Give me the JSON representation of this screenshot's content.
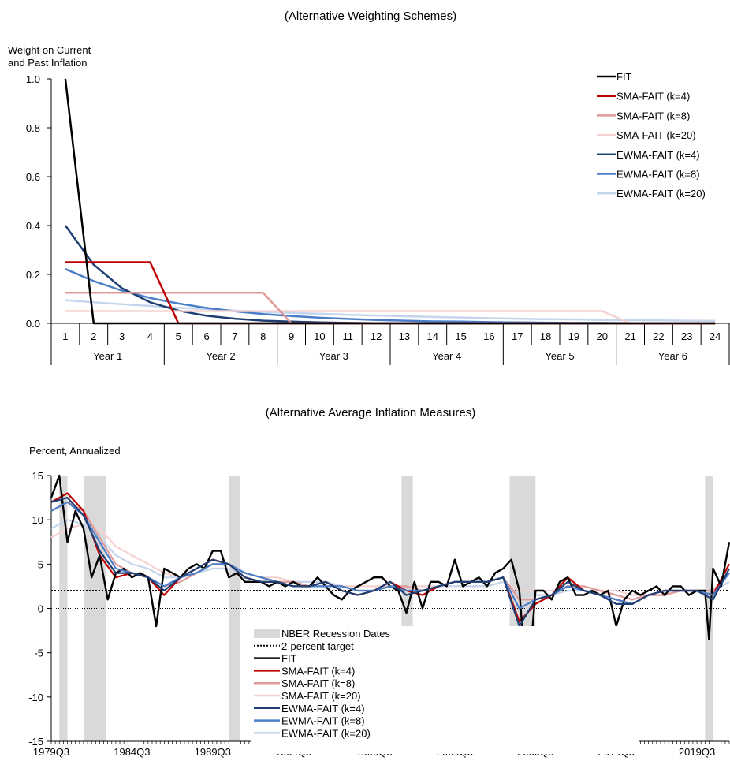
{
  "chart_data": [
    {
      "type": "line",
      "title": "(Alternative Weighting Schemes)",
      "ylabel_lines": [
        "Weight on Current",
        "and Past Inflation"
      ],
      "ylim": [
        0,
        1.0
      ],
      "yticks": [
        "1.0",
        "0.8",
        "0.6",
        "0.4",
        "0.2",
        "0.0"
      ],
      "ytick_values": [
        1.0,
        0.8,
        0.6,
        0.4,
        0.2,
        0.0
      ],
      "x": [
        1,
        2,
        3,
        4,
        5,
        6,
        7,
        8,
        9,
        10,
        11,
        12,
        13,
        14,
        15,
        16,
        17,
        18,
        19,
        20,
        21,
        22,
        23,
        24
      ],
      "year_labels": [
        "Year 1",
        "Year 2",
        "Year 3",
        "Year 4",
        "Year 5",
        "Year 6"
      ],
      "legend_position": "top-right",
      "series": [
        {
          "name": "FIT",
          "color": "#000000",
          "values": [
            1,
            0,
            0,
            0,
            0,
            0,
            0,
            0,
            0,
            0,
            0,
            0,
            0,
            0,
            0,
            0,
            0,
            0,
            0,
            0,
            0,
            0,
            0,
            0
          ]
        },
        {
          "name": "SMA-FAIT (k=4)",
          "color": "#c00000",
          "values": [
            0.25,
            0.25,
            0.25,
            0.25,
            0,
            0,
            0,
            0,
            0,
            0,
            0,
            0,
            0,
            0,
            0,
            0,
            0,
            0,
            0,
            0,
            0,
            0,
            0,
            0
          ]
        },
        {
          "name": "SMA-FAIT (k=8)",
          "color": "#e09a9a",
          "values": [
            0.125,
            0.125,
            0.125,
            0.125,
            0.125,
            0.125,
            0.125,
            0.125,
            0,
            0,
            0,
            0,
            0,
            0,
            0,
            0,
            0,
            0,
            0,
            0,
            0,
            0,
            0,
            0
          ]
        },
        {
          "name": "SMA-FAIT (k=20)",
          "color": "#f5d2d2",
          "values": [
            0.05,
            0.05,
            0.05,
            0.05,
            0.05,
            0.05,
            0.05,
            0.05,
            0.05,
            0.05,
            0.05,
            0.05,
            0.05,
            0.05,
            0.05,
            0.05,
            0.05,
            0.05,
            0.05,
            0.05,
            0,
            0,
            0,
            0
          ]
        },
        {
          "name": "EWMA-FAIT (k=4)",
          "color": "#1f3f73",
          "values": [
            0.4,
            0.24,
            0.144,
            0.086,
            0.052,
            0.031,
            0.019,
            0.011,
            0.007,
            0.004,
            0.002,
            0.001,
            0.001,
            0,
            0,
            0,
            0,
            0,
            0,
            0,
            0,
            0,
            0,
            0
          ]
        },
        {
          "name": "EWMA-FAIT (k=8)",
          "color": "#4a7fc8",
          "values": [
            0.222,
            0.173,
            0.134,
            0.104,
            0.081,
            0.063,
            0.049,
            0.038,
            0.03,
            0.023,
            0.018,
            0.014,
            0.011,
            0.008,
            0.007,
            0.005,
            0.004,
            0.003,
            0.002,
            0.002,
            0.001,
            0.001,
            0.001,
            0.001
          ]
        },
        {
          "name": "EWMA-FAIT (k=20)",
          "color": "#c5d5ec",
          "values": [
            0.095,
            0.086,
            0.078,
            0.071,
            0.064,
            0.058,
            0.052,
            0.047,
            0.043,
            0.039,
            0.035,
            0.032,
            0.029,
            0.026,
            0.024,
            0.021,
            0.019,
            0.017,
            0.016,
            0.014,
            0.013,
            0.012,
            0.011,
            0.01
          ]
        }
      ]
    },
    {
      "type": "line",
      "title": "(Alternative Average Inflation Measures)",
      "ylabel": "Percent, Annualized",
      "ylim": [
        -15,
        15
      ],
      "yticks": [
        "15",
        "10",
        "5",
        "0",
        "-5",
        "-10",
        "-15"
      ],
      "ytick_values": [
        15,
        10,
        5,
        0,
        -5,
        -10,
        -15
      ],
      "xlabels": [
        "1979Q3",
        "1984Q3",
        "1989Q3",
        "1994Q3",
        "1999Q3",
        "2004Q3",
        "2009Q3",
        "2014Q3",
        "2019Q3"
      ],
      "xlim": [
        1979.5,
        2021.5
      ],
      "target": 2,
      "recessions": [
        [
          1980.0,
          1980.5
        ],
        [
          1981.5,
          1982.9
        ],
        [
          1990.5,
          1991.2
        ],
        [
          2001.2,
          2001.9
        ],
        [
          2007.9,
          2009.5
        ],
        [
          2020.0,
          2020.5
        ]
      ],
      "legend_position": "bottom-center",
      "legend": [
        {
          "name": "NBER Recession Dates",
          "kind": "box",
          "color": "#d9d9d9"
        },
        {
          "name": "2-percent target",
          "kind": "dotted",
          "color": "#000000"
        },
        {
          "name": "FIT",
          "kind": "line",
          "color": "#000000"
        },
        {
          "name": "SMA-FAIT (k=4)",
          "kind": "line",
          "color": "#c00000"
        },
        {
          "name": "SMA-FAIT (k=8)",
          "kind": "line",
          "color": "#e09a9a"
        },
        {
          "name": "SMA-FAIT (k=20)",
          "kind": "line",
          "color": "#f5d2d2"
        },
        {
          "name": "EWMA-FAIT (k=4)",
          "kind": "line",
          "color": "#1f3f73"
        },
        {
          "name": "EWMA-FAIT (k=8)",
          "kind": "line",
          "color": "#4a7fc8"
        },
        {
          "name": "EWMA-FAIT (k=20)",
          "kind": "line",
          "color": "#c5d5ec"
        }
      ],
      "fit_x": [
        1979.5,
        1980,
        1980.5,
        1981,
        1981.5,
        1982,
        1982.5,
        1983,
        1983.5,
        1984,
        1984.5,
        1985,
        1985.5,
        1986,
        1986.5,
        1987,
        1987.5,
        1988,
        1988.5,
        1989,
        1989.5,
        1990,
        1990.5,
        1991,
        1991.5,
        1992,
        1992.5,
        1993,
        1993.5,
        1994,
        1994.5,
        1995,
        1995.5,
        1996,
        1996.5,
        1997,
        1997.5,
        1998,
        1998.5,
        1999,
        1999.5,
        2000,
        2000.5,
        2001,
        2001.5,
        2002,
        2002.5,
        2003,
        2003.5,
        2004,
        2004.5,
        2005,
        2005.5,
        2006,
        2006.5,
        2007,
        2007.5,
        2008,
        2008.5,
        2009,
        2009.5,
        2010,
        2010.5,
        2011,
        2011.5,
        2012,
        2012.5,
        2013,
        2013.5,
        2014,
        2014.5,
        2015,
        2015.5,
        2016,
        2016.5,
        2017,
        2017.5,
        2018,
        2018.5,
        2019,
        2019.5,
        2020,
        2020.25,
        2020.5,
        2021,
        2021.5
      ],
      "fit": [
        12.5,
        15,
        7.5,
        11,
        9,
        3.5,
        6,
        1,
        4,
        4.5,
        3.5,
        4,
        3.5,
        -2,
        4.5,
        4,
        3.5,
        4.5,
        5,
        4.5,
        6.5,
        6.5,
        3.5,
        4,
        3,
        3,
        3,
        2.5,
        3,
        2.5,
        3,
        2.5,
        2.5,
        3.5,
        2.5,
        1.5,
        1,
        2,
        2.5,
        3,
        3.5,
        3.5,
        2.5,
        2,
        -0.5,
        3,
        0,
        3,
        3,
        2.5,
        5.5,
        2.5,
        3,
        3.5,
        2.5,
        4,
        4.5,
        5.5,
        2,
        -9.5,
        2,
        2,
        1,
        3,
        3.5,
        1.5,
        1.5,
        2,
        1.5,
        2,
        -2,
        1,
        2,
        1.5,
        2,
        2.5,
        1.5,
        2.5,
        2.5,
        1.5,
        2,
        2,
        -3.5,
        4.5,
        2.5,
        7.5
      ],
      "ma_x": [
        1979.5,
        1980.5,
        1981.5,
        1982.5,
        1983.5,
        1984.5,
        1985.5,
        1986.5,
        1987.5,
        1988.5,
        1989.5,
        1990.5,
        1991.5,
        1992.5,
        1993.5,
        1994.5,
        1995.5,
        1996.5,
        1997.5,
        1998.5,
        1999.5,
        2000.5,
        2001.5,
        2002.5,
        2003.5,
        2004.5,
        2005.5,
        2006.5,
        2007.5,
        2008.5,
        2009.5,
        2010.5,
        2011.5,
        2012.5,
        2013.5,
        2014.5,
        2015.5,
        2016.5,
        2017.5,
        2018.5,
        2019.5,
        2020.5,
        2021.5
      ],
      "sma4": [
        12,
        13,
        11,
        6,
        3.5,
        4,
        3.5,
        1.5,
        3.5,
        4.5,
        5.5,
        5,
        3.5,
        3,
        3,
        2.5,
        2.5,
        3,
        2,
        1.5,
        2,
        3,
        2,
        1.5,
        2.5,
        3,
        3,
        3,
        3.5,
        -1.5,
        0.5,
        1.5,
        3.5,
        2,
        1.5,
        1,
        0.5,
        1.5,
        2,
        2,
        2,
        1.5,
        5
      ],
      "sma8": [
        11,
        12,
        11,
        8,
        5,
        4,
        3.5,
        2.5,
        3,
        4,
        5,
        5,
        4,
        3.5,
        3,
        3,
        2.5,
        2.5,
        2.5,
        2,
        2,
        2.5,
        2.5,
        2,
        2.5,
        3,
        3,
        3,
        3.5,
        1,
        1,
        1.5,
        2.5,
        2.5,
        2,
        1.5,
        1,
        1.5,
        1.5,
        2,
        2,
        2,
        4
      ],
      "sma20": [
        8,
        9,
        9.5,
        9,
        7,
        6,
        5,
        4,
        3.5,
        4,
        4.5,
        4.5,
        4,
        3.5,
        3.5,
        3,
        3,
        3,
        2.5,
        2.5,
        2.5,
        2.5,
        2.5,
        2.5,
        2.5,
        2.5,
        2.5,
        2.5,
        3,
        2,
        2,
        2,
        2.5,
        2.5,
        2,
        2,
        1.5,
        1.5,
        1.5,
        2,
        2,
        2,
        3
      ],
      "ewma4": [
        12,
        12.5,
        10.5,
        6.5,
        4,
        4,
        3.5,
        2,
        3.5,
        4.5,
        5.5,
        5,
        3.5,
        3,
        3,
        2.5,
        2.5,
        3,
        2,
        1.5,
        2,
        3,
        1.5,
        2,
        2.5,
        3,
        3,
        3,
        3.5,
        -2,
        1,
        1.5,
        3,
        2,
        1.5,
        0.5,
        0.5,
        1.5,
        2,
        2,
        2,
        1,
        4.5
      ],
      "ewma8": [
        11,
        12,
        10.5,
        7.5,
        4.5,
        4,
        3.5,
        2.5,
        3.5,
        4,
        5,
        5,
        4,
        3.5,
        3,
        2.5,
        2.5,
        2.5,
        2.5,
        2,
        2,
        2.5,
        2,
        2,
        2.5,
        3,
        3,
        3,
        3.5,
        0,
        1,
        1.5,
        2.5,
        2,
        1.5,
        1,
        0.5,
        1.5,
        2,
        2,
        2,
        1.5,
        4
      ],
      "ewma20": [
        9,
        10,
        9.5,
        8,
        6,
        5,
        4.5,
        3.5,
        3.5,
        4,
        4.5,
        4.5,
        4,
        3.5,
        3,
        3,
        3,
        3,
        2.5,
        2,
        2,
        2.5,
        2.5,
        2,
        2.5,
        2.5,
        2.5,
        2.5,
        3,
        1.5,
        1.5,
        1.5,
        2,
        2,
        2,
        1.5,
        1,
        1.5,
        1.5,
        2,
        2,
        2,
        3
      ]
    }
  ]
}
